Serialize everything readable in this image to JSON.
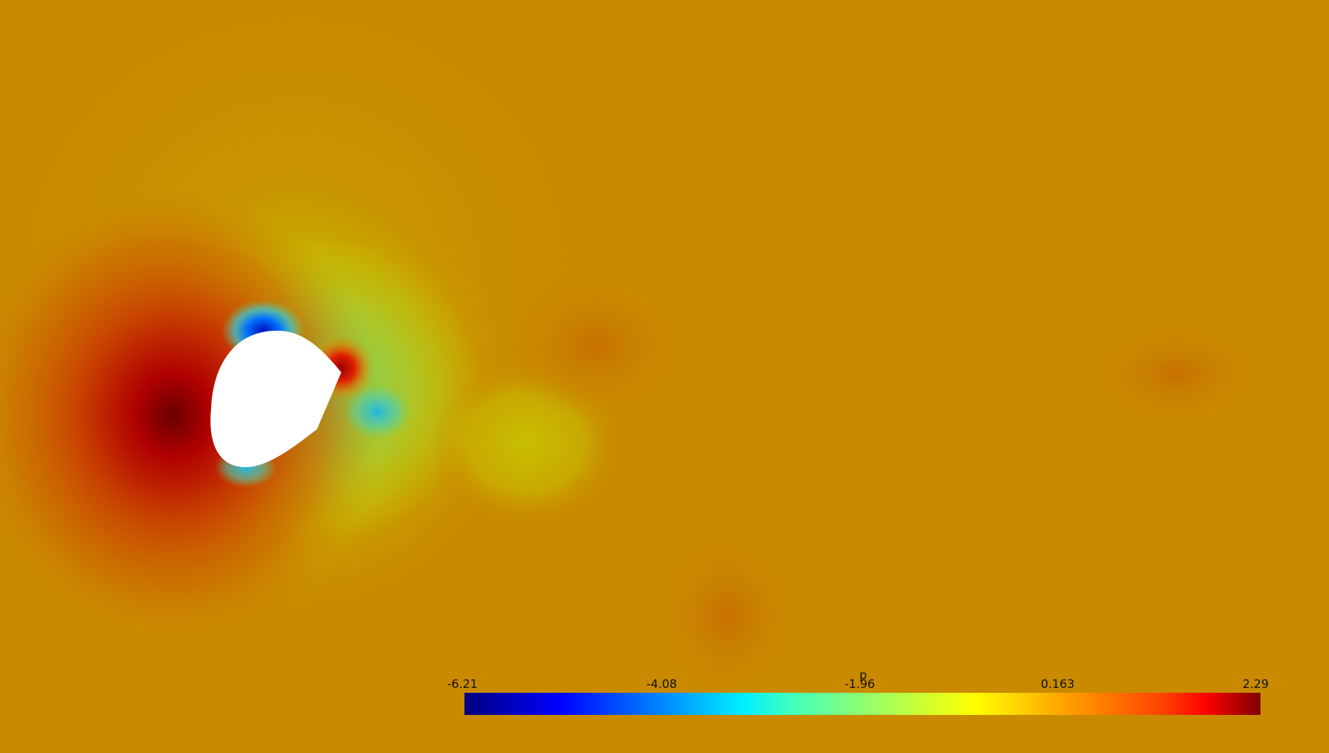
{
  "colorbar": {
    "title": "p",
    "ticks": [
      "-6.21",
      "-4.08",
      "-1.96",
      "0.163",
      "2.29"
    ],
    "min": -6.21,
    "max": 2.29,
    "colormap": "jet"
  },
  "colors": {
    "background": "#c98a00",
    "high_pressure": "#8b0000",
    "low_pressure": "#0010c0",
    "obstacle": "#ffffff"
  }
}
